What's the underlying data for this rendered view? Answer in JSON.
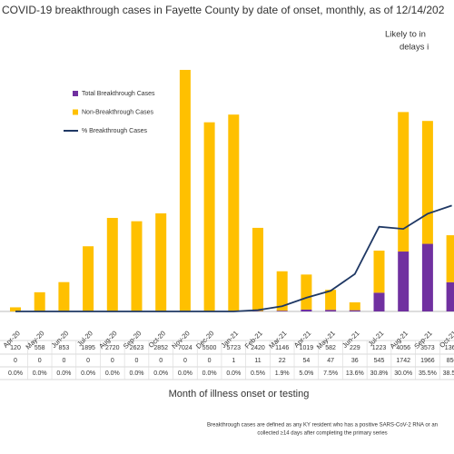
{
  "chart_data": {
    "type": "bar",
    "stacked": true,
    "title": "COVID-19 breakthrough cases in Fayette County by date of onset, monthly, as of 12/14/202",
    "annotation": [
      "Likely to in",
      "delays i"
    ],
    "x_label": "Month of illness onset or testing",
    "footnote": [
      "Breakthrough cases are defined as any KY resident who has a positive SARS-CoV-2 RNA or an",
      "collected ≥14 days after completing the primary series"
    ],
    "categories": [
      "Apr-20",
      "May-20",
      "Jun-20",
      "Jul-20",
      "Aug-20",
      "Sep-20",
      "Oct-20",
      "Nov-20",
      "Dec-20",
      "Jan-21",
      "Feb-21",
      "Mar-21",
      "Apr-21",
      "May-21",
      "Jun-21",
      "Jul-21",
      "Aug-21",
      "Sep-21",
      "Oct-21"
    ],
    "series": [
      {
        "name": "Total Breakthrough Cases",
        "color": "#7030a0",
        "values": [
          0,
          0,
          0,
          0,
          0,
          0,
          0,
          0,
          0,
          1,
          11,
          22,
          54,
          47,
          36,
          545,
          1742,
          1966,
          850
        ]
      },
      {
        "name": "Non-Breakthrough Cases",
        "color": "#ffc000",
        "values": [
          120,
          558,
          853,
          1895,
          2720,
          2623,
          2852,
          7024,
          5500,
          5723,
          2420,
          1146,
          1019,
          582,
          229,
          1223,
          4056,
          3573,
          1366
        ]
      },
      {
        "name": "% Breakthrough Cases",
        "color": "#1f3864",
        "type": "line",
        "axis": "y2",
        "values": [
          0,
          0,
          0,
          0,
          0,
          0,
          0,
          0,
          0,
          0,
          0.5,
          1.9,
          5.0,
          7.5,
          13.6,
          30.8,
          30.0,
          35.5,
          38.5
        ],
        "value_labels": [
          "0.0%",
          "0.0%",
          "0.0%",
          "0.0%",
          "0.0%",
          "0.0%",
          "0.0%",
          "0.0%",
          "0.0%",
          "0.0%",
          "0.5%",
          "1.9%",
          "5.0%",
          "7.5%",
          "13.6%",
          "30.8%",
          "30.0%",
          "35.5%",
          "38.5%"
        ]
      }
    ],
    "ylim": [
      0,
      8000
    ],
    "y2lim": [
      0,
      100
    ]
  }
}
